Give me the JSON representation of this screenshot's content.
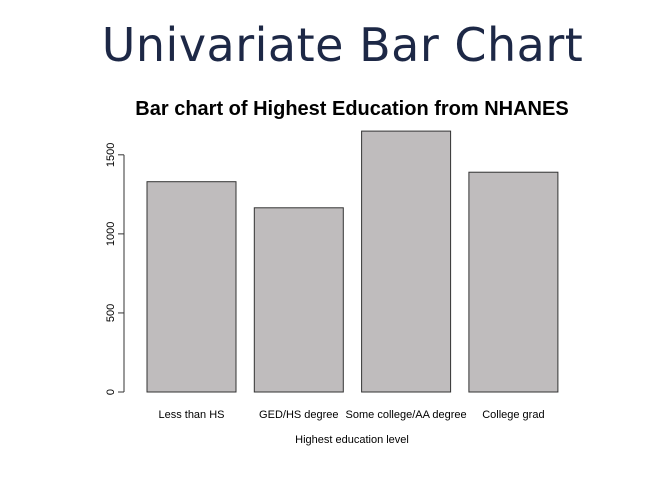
{
  "slide": {
    "title": "Univariate Bar Chart"
  },
  "chart_data": {
    "type": "bar",
    "title": "Bar chart of Highest Education from NHANES",
    "xlabel": "Highest education level",
    "ylabel": "",
    "categories": [
      "Less than HS",
      "GED/HS degree",
      "Some college/AA degree",
      "College grad"
    ],
    "values": [
      1330,
      1165,
      1650,
      1390
    ],
    "y_ticks": [
      "0",
      "500",
      "1000",
      "1500"
    ],
    "ylim": [
      0,
      1650
    ],
    "grid": false,
    "legend": "none",
    "colors": {
      "bar_fill": "#bfbcbd",
      "bar_stroke": "#333333",
      "title": "#1d2846"
    }
  }
}
